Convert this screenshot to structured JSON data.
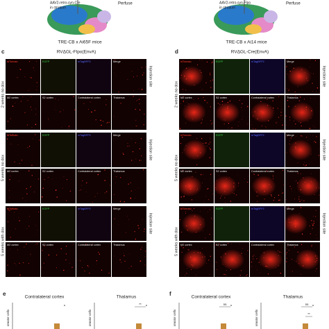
{
  "top": [
    {
      "virus": [
        "AAV2-retro-syn-Cre",
        "in striatum"
      ],
      "step": "Perfuse",
      "mouse": "TRE-CB x Ai65F mice"
    },
    {
      "virus": [
        "AAV2-retro-syn-Flpo",
        "in striatum"
      ],
      "step": "Perfuse",
      "mouse": "TRE-CB x Ai14 mice"
    }
  ],
  "panels": [
    {
      "letter": "c",
      "title": "RVΔGL-Flpo(EnvA)",
      "channels": [
        "tdTomato",
        "EGFP",
        "mTagBFP2",
        "Merge"
      ],
      "regions": [
        "M2 cortex",
        "S2 cortex",
        "Contralateral cortex",
        "Thalamus"
      ],
      "conditions": [
        "2 weeks no dox",
        "5 weeks no dox",
        "5 weeks with dox"
      ],
      "injection_label": "Injection site"
    },
    {
      "letter": "d",
      "title": "RVΔGL-Cre(EnvA)",
      "channels": [
        "tdTomato",
        "EGFP",
        "mTagBFP2",
        "Merge"
      ],
      "regions": [
        "M2 cortex",
        "S2 cortex",
        "Contralateral cortex",
        "Thalamus"
      ],
      "conditions": [
        "2 weeks no dox",
        "5 weeks no dox",
        "5 weeks with dox"
      ],
      "injection_label": "Injection site"
    }
  ],
  "bottom": [
    {
      "letter": "e",
      "plots": [
        {
          "title": "Contralateral cortex",
          "y_label": "omator cells",
          "marks": []
        },
        {
          "title": "Thalamus",
          "y_label": "omator cells",
          "marks": [
            "**"
          ]
        }
      ]
    },
    {
      "letter": "f",
      "plots": [
        {
          "title": "Contralateral cortex",
          "y_label": "omator cells",
          "marks": [
            "ns"
          ]
        },
        {
          "title": "Thalamus",
          "y_label": "omator cells",
          "marks": [
            "ns",
            "**"
          ]
        }
      ]
    }
  ]
}
